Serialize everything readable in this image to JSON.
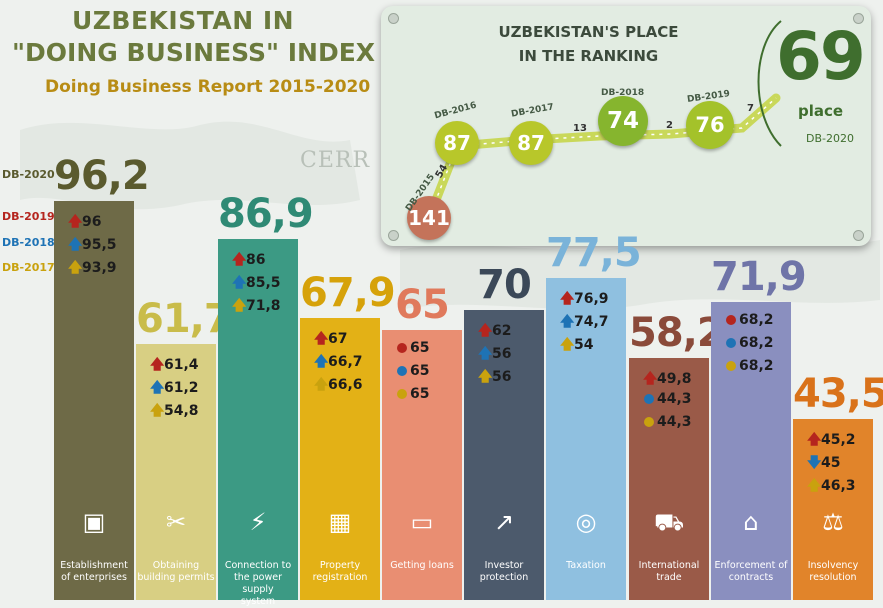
{
  "header": {
    "title_line1": "UZBEKISTAN IN",
    "title_line2": "\"DOING BUSINESS\" INDEX",
    "subtitle": "Doing Business Report 2015-2020",
    "watermark": "CERR"
  },
  "legend": [
    {
      "label": "DB-2020",
      "color": "#5a5a2e"
    },
    {
      "label": "DB-2019",
      "color": "#b5251e"
    },
    {
      "label": "DB-2018",
      "color": "#1e73b5"
    },
    {
      "label": "DB-2017",
      "color": "#c9a20e"
    }
  ],
  "ranking": {
    "title_line1": "UZBEKISTAN'S PLACE",
    "title_line2": "IN THE RANKING",
    "current_rank": "69",
    "current_label": "place",
    "current_year": "DB-2020",
    "points": [
      {
        "year": "DB-2015",
        "rank": "141",
        "color": "#c4735a"
      },
      {
        "year": "DB-2016",
        "rank": "87",
        "color": "#b8c72a"
      },
      {
        "year": "DB-2017",
        "rank": "87",
        "color": "#b8c72a"
      },
      {
        "year": "DB-2018",
        "rank": "74",
        "color": "#86b52e"
      },
      {
        "year": "DB-2019",
        "rank": "76",
        "color": "#a4c22a"
      }
    ],
    "steps": [
      "54",
      "13",
      "2",
      "7"
    ]
  },
  "chart_data": {
    "type": "bar",
    "title": "UZBEKISTAN IN \"DOING BUSINESS\" INDEX",
    "subtitle": "Doing Business Report 2015-2020",
    "series_name": "DB-2020",
    "ylim": [
      0,
      100
    ],
    "categories": [
      {
        "label": "Establishment of enterprises",
        "label_lines": [
          "Establishment",
          "of enterprises"
        ],
        "value": "96,2",
        "v": 96.2,
        "icon": "briefcase-icon",
        "glyph": "▣",
        "bar_color": "#6e6a47",
        "value_color": "#5a5a2e",
        "history": [
          {
            "mark": "up",
            "value": "96"
          },
          {
            "mark": "up",
            "value": "95,5"
          },
          {
            "mark": "up",
            "value": "93,9"
          }
        ]
      },
      {
        "label": "Obtaining building permits",
        "label_lines": [
          "Obtaining",
          "building permits"
        ],
        "value": "61,7",
        "v": 61.7,
        "icon": "tools-icon",
        "glyph": "✂",
        "bar_color": "#d8cf83",
        "value_color": "#c9bc4a",
        "history": [
          {
            "mark": "up",
            "value": "61,4"
          },
          {
            "mark": "up",
            "value": "61,2"
          },
          {
            "mark": "up",
            "value": "54,8"
          }
        ]
      },
      {
        "label": "Connection to the power supply system",
        "label_lines": [
          "Connection to",
          "the power supply",
          "system"
        ],
        "value": "86,9",
        "v": 86.9,
        "icon": "lightning-icon",
        "glyph": "⚡",
        "bar_color": "#3c9a84",
        "value_color": "#2f8a75",
        "history": [
          {
            "mark": "up",
            "value": "86"
          },
          {
            "mark": "up",
            "value": "85,5"
          },
          {
            "mark": "up",
            "value": "71,8"
          }
        ]
      },
      {
        "label": "Property registration",
        "label_lines": [
          "Property",
          "registration"
        ],
        "value": "67,9",
        "v": 67.9,
        "icon": "building-icon",
        "glyph": "▦",
        "bar_color": "#e3b116",
        "value_color": "#d6a20a",
        "history": [
          {
            "mark": "up",
            "value": "67"
          },
          {
            "mark": "up",
            "value": "66,7"
          },
          {
            "mark": "up",
            "value": "66,6"
          }
        ]
      },
      {
        "label": "Getting loans",
        "label_lines": [
          "Getting loans"
        ],
        "value": "65",
        "v": 65,
        "icon": "credit-card-icon",
        "glyph": "▭",
        "bar_color": "#e98e72",
        "value_color": "#e07a5c",
        "history": [
          {
            "mark": "dot",
            "value": "65"
          },
          {
            "mark": "dot",
            "value": "65"
          },
          {
            "mark": "dot",
            "value": "65"
          }
        ]
      },
      {
        "label": "Investor protection",
        "label_lines": [
          "Investor",
          "protection"
        ],
        "value": "70",
        "v": 70,
        "icon": "growth-chart-icon",
        "glyph": "↗",
        "bar_color": "#4c5a6c",
        "value_color": "#3b4858",
        "history": [
          {
            "mark": "up",
            "value": "62"
          },
          {
            "mark": "up",
            "value": "56"
          },
          {
            "mark": "up",
            "value": "56"
          }
        ]
      },
      {
        "label": "Taxation",
        "label_lines": [
          "Taxation"
        ],
        "value": "77,5",
        "v": 77.5,
        "icon": "coins-icon",
        "glyph": "◎",
        "bar_color": "#8fc0e0",
        "value_color": "#7ab3d9",
        "history": [
          {
            "mark": "up",
            "value": "76,9"
          },
          {
            "mark": "up",
            "value": "74,7"
          },
          {
            "mark": "up",
            "value": "54"
          }
        ]
      },
      {
        "label": "International trade",
        "label_lines": [
          "International",
          "trade"
        ],
        "value": "58,2",
        "v": 58.2,
        "icon": "truck-icon",
        "glyph": "⛟",
        "bar_color": "#9a5a48",
        "value_color": "#8a4a3a",
        "history": [
          {
            "mark": "up",
            "value": "49,8"
          },
          {
            "mark": "dot",
            "value": "44,3"
          },
          {
            "mark": "dot",
            "value": "44,3"
          }
        ]
      },
      {
        "label": "Enforcement of contracts",
        "label_lines": [
          "Enforcement of",
          "contracts"
        ],
        "value": "71,9",
        "v": 71.9,
        "icon": "courthouse-icon",
        "glyph": "⌂",
        "bar_color": "#8a8fbf",
        "value_color": "#6f74a8",
        "history": [
          {
            "mark": "dot",
            "value": "68,2"
          },
          {
            "mark": "dot",
            "value": "68,2"
          },
          {
            "mark": "dot",
            "value": "68,2"
          }
        ]
      },
      {
        "label": "Insolvency resolution",
        "label_lines": [
          "Insolvency",
          "resolution"
        ],
        "value": "43,5",
        "v": 43.5,
        "icon": "gavel-icon",
        "glyph": "⚖",
        "bar_color": "#e1842a",
        "value_color": "#d9721a",
        "history": [
          {
            "mark": "up",
            "value": "45,2"
          },
          {
            "mark": "down",
            "value": "45"
          },
          {
            "mark": "up",
            "value": "46,3"
          }
        ]
      }
    ]
  }
}
